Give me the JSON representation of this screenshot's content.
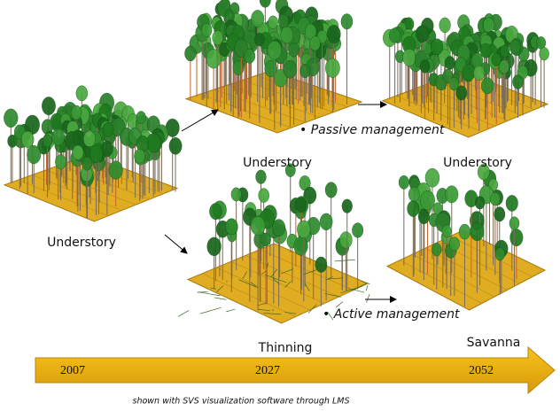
{
  "labels": {
    "initial": "Understory",
    "passive_2027": "Understory",
    "passive_2052": "Understory"
  },
  "scenarios": [
    "• Passive management",
    "• Active management"
  ],
  "stages": [
    "Thinning",
    "Savanna"
  ],
  "timeline": [
    "2007",
    "2027",
    "2052"
  ],
  "footer": "shown with SVS visualization software through LMS"
}
